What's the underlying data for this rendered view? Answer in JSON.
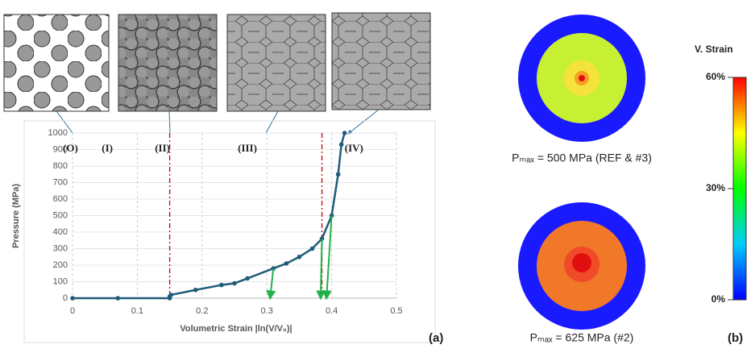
{
  "chart_data": {
    "type": "line",
    "xlabel": "Volumetric Strain |ln(V/V₀)|",
    "ylabel": "Pressure (MPa)",
    "xlim": [
      0,
      0.5
    ],
    "ylim": [
      0,
      1000
    ],
    "xticks": [
      0,
      0.1,
      0.2,
      0.3,
      0.4,
      0.5
    ],
    "yticks": [
      0,
      100,
      200,
      300,
      400,
      500,
      600,
      700,
      800,
      900,
      1000
    ],
    "grid": true,
    "vlines": [
      0.15,
      0.385
    ],
    "regions": [
      "(O)",
      "(I)",
      "(II)",
      "(III)",
      "(IV)"
    ],
    "series": [
      {
        "color": "#1f5c7a",
        "x": [
          0,
          0.07,
          0.15,
          0.15,
          0.152,
          0.19,
          0.23,
          0.25,
          0.27,
          0.31,
          0.33,
          0.35,
          0.37,
          0.385,
          0.4,
          0.41,
          0.415,
          0.42
        ],
        "values": [
          0,
          0,
          0,
          10,
          20,
          50,
          80,
          90,
          120,
          180,
          210,
          250,
          300,
          360,
          500,
          750,
          930,
          1000
        ]
      },
      {
        "color": "#22b14c",
        "x": [
          0.31,
          0.305
        ],
        "values": [
          180,
          0
        ]
      },
      {
        "color": "#22b14c",
        "x": [
          0.385,
          0.383
        ],
        "values": [
          360,
          0
        ]
      },
      {
        "color": "#22b14c",
        "x": [
          0.4,
          0.392
        ],
        "values": [
          500,
          0
        ]
      }
    ]
  },
  "contours": [
    {
      "label": "Pₘₐₓ = 500 MPa (REF & #3)"
    },
    {
      "label": "Pₘₐₓ = 625 MPa (#2)"
    }
  ],
  "colorbar": {
    "title": "V. Strain",
    "clim": [
      0,
      60
    ],
    "ticks": [
      {
        "value": 60,
        "label": "60%"
      },
      {
        "value": 30,
        "label": "30%"
      },
      {
        "value": 0,
        "label": "0%"
      }
    ]
  },
  "panel_labels": [
    "(a)",
    "(b)"
  ]
}
